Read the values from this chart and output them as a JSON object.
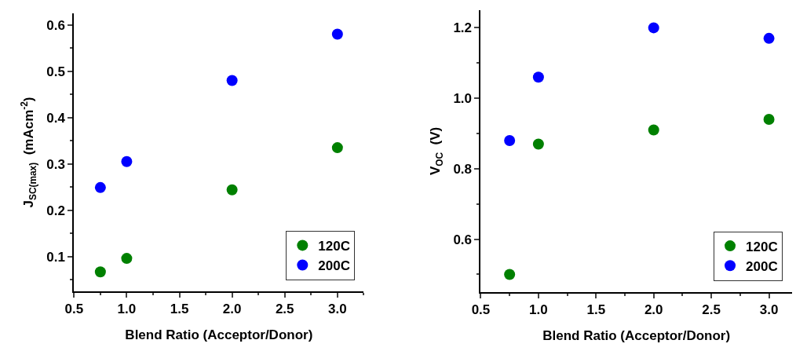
{
  "chart_data": [
    {
      "type": "scatter",
      "xlabel": "Blend Ratio (Acceptor/Donor)",
      "ylabel": "J$_{SC(max)}$  (mAcm$^{-2}$)",
      "x": [
        0.75,
        1.0,
        2.0,
        3.0
      ],
      "series": [
        {
          "name": "120C",
          "color": "#008000",
          "values": [
            0.067,
            0.096,
            0.244,
            0.335
          ]
        },
        {
          "name": "200C",
          "color": "#0000ff",
          "values": [
            0.249,
            0.305,
            0.48,
            0.58
          ]
        }
      ],
      "xlim": [
        0.5,
        3.25
      ],
      "xticks": [
        {
          "value": 0.5,
          "label": "0.5"
        },
        {
          "value": 1.0,
          "label": "1.0"
        },
        {
          "value": 1.5,
          "label": "1.5"
        },
        {
          "value": 2.0,
          "label": "2.0"
        },
        {
          "value": 2.5,
          "label": "2.5"
        },
        {
          "value": 3.0,
          "label": "3.0"
        }
      ],
      "ylim": [
        0.025,
        0.625
      ],
      "yticks": [
        0.1,
        0.2,
        0.3,
        0.4,
        0.5,
        0.6
      ],
      "legend": "bottom right",
      "marker": "circle"
    },
    {
      "type": "scatter",
      "xlabel": "Blend Ratio (Acceptor/Donor)",
      "ylabel": "V$_{OC}$  (V)",
      "x": [
        0.75,
        1.0,
        2.0,
        3.0
      ],
      "series": [
        {
          "name": "120C",
          "color": "#008000",
          "values": [
            0.5,
            0.87,
            0.91,
            0.94
          ]
        },
        {
          "name": "200C",
          "color": "#0000ff",
          "values": [
            0.88,
            1.06,
            1.2,
            1.17
          ]
        }
      ],
      "xlim": [
        0.5,
        3.2
      ],
      "xticks": [
        {
          "value": 0.5,
          "label": "0.5"
        },
        {
          "value": 1.0,
          "label": "1.0"
        },
        {
          "value": 1.5,
          "label": "1.5"
        },
        {
          "value": 2.0,
          "label": "2.0"
        },
        {
          "value": 2.5,
          "label": "2.5"
        },
        {
          "value": 3.0,
          "label": "3.0"
        }
      ],
      "ylim": [
        0.45,
        1.25
      ],
      "yticks": [
        {
          "value": 0.6,
          "label": "0.6"
        },
        {
          "value": 0.8,
          "label": "0.8"
        },
        {
          "value": 1.0,
          "label": "1.0"
        },
        {
          "value": 1.2,
          "label": "1.2"
        }
      ],
      "legend": "bottom right",
      "marker": "circle"
    }
  ]
}
